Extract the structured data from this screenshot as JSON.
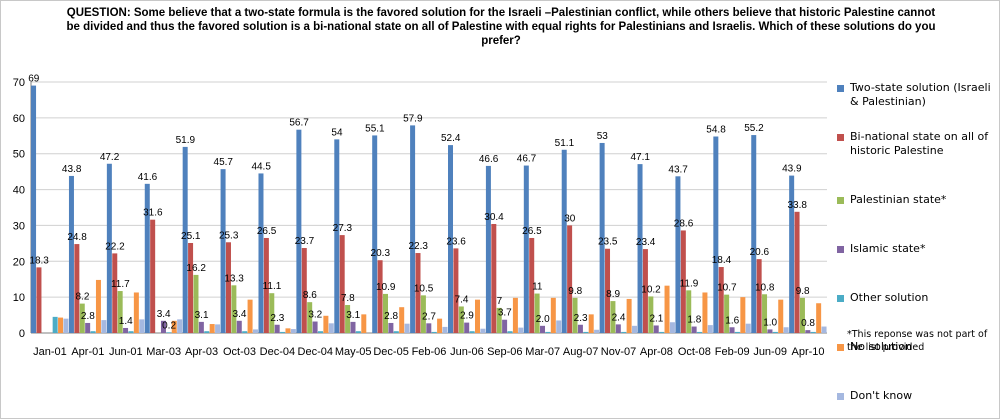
{
  "chart_data": {
    "type": "bar",
    "title": "QUESTION: Some believe that a two-state formula is the favored solution for the Israeli –Palestinian conflict, while others believe that historic Palestine cannot be divided and thus the favored solution is a bi-national state on all of Palestine with equal rights for Palestinians and Israelis. Which of these solutions do you prefer?",
    "categories": [
      "Jan-01",
      "Apr-01",
      "Jun-01",
      "Mar-03",
      "Apr-03",
      "Oct-03",
      "Dec-04",
      "Dec-04",
      "May-05",
      "Dec-05",
      "Feb-06",
      "Jun-06",
      "Sep-06",
      "Mar-07",
      "Aug-07",
      "Nov-07",
      "Apr-08",
      "Oct-08",
      "Feb-09",
      "Jun-09",
      "Apr-10"
    ],
    "ylim": [
      0,
      70
    ],
    "yticks": [
      0,
      10,
      20,
      30,
      40,
      50,
      60,
      70
    ],
    "grid": true,
    "legend_position": "right",
    "series": [
      {
        "name": "Two-state solution (Israeli & Palestinian)",
        "color": "#4f81bd",
        "values": [
          69,
          43.8,
          47.2,
          41.6,
          51.9,
          45.7,
          44.5,
          56.7,
          54,
          55.1,
          57.9,
          52.4,
          46.6,
          46.7,
          51.1,
          53,
          47.1,
          43.7,
          54.8,
          55.2,
          43.9
        ],
        "labels": [
          "69",
          "43.8",
          "47.2",
          "41.6",
          "51.9",
          "45.7",
          "44.5",
          "56.7",
          "54",
          "55.1",
          "57.9",
          "52.4",
          "46.6",
          "46.7",
          "51.1",
          "53",
          "47.1",
          "43.7",
          "54.8",
          "55.2",
          "43.9"
        ]
      },
      {
        "name": "Bi-national state on all of historic Palestine",
        "color": "#c0504d",
        "values": [
          18.3,
          24.8,
          22.2,
          31.6,
          25.1,
          25.3,
          26.5,
          23.7,
          27.3,
          20.3,
          22.3,
          23.6,
          30.4,
          26.5,
          30,
          23.5,
          23.4,
          28.6,
          18.4,
          20.6,
          33.8
        ],
        "labels": [
          "18.3",
          "24.8",
          "22.2",
          "31.6",
          "25.1",
          "25.3",
          "26.5",
          "23.7",
          "27.3",
          "20.3",
          "22.3",
          "23.6",
          "30.4",
          "26.5",
          "30",
          "23.5",
          "23.4",
          "28.6",
          "18.4",
          "20.6",
          "33.8"
        ]
      },
      {
        "name": "Palestinian state*",
        "color": "#9bbb59",
        "values": [
          null,
          8.2,
          11.7,
          null,
          16.2,
          13.3,
          11.1,
          8.6,
          7.8,
          10.9,
          10.5,
          7.4,
          7,
          11,
          9.8,
          8.9,
          10.2,
          11.9,
          10.7,
          10.8,
          9.8
        ],
        "labels": [
          "",
          "8.2",
          "11.7",
          "",
          "16.2",
          "13.3",
          "11.1",
          "8.6",
          "7.8",
          "10.9",
          "10.5",
          "7.4",
          "7",
          "11",
          "9.8",
          "8.9",
          "10.2",
          "11.9",
          "10.7",
          "10.8",
          "9.8"
        ]
      },
      {
        "name": "Islamic state*",
        "color": "#8064a2",
        "values": [
          null,
          2.8,
          1.4,
          3.4,
          3.1,
          3.4,
          2.3,
          3.2,
          3.1,
          2.8,
          2.7,
          2.9,
          3.7,
          2.0,
          2.3,
          2.4,
          2.1,
          1.8,
          1.6,
          1.0,
          0.8
        ],
        "labels": [
          "",
          "2.8",
          "1.4",
          "3.4",
          "3.1",
          "3.4",
          "2.3",
          "3.2",
          "3.1",
          "2.8",
          "2.7",
          "2.9",
          "3.7",
          "2.0",
          "2.3",
          "2.4",
          "2.1",
          "1.8",
          "1.6",
          "1.0",
          "0.8"
        ]
      },
      {
        "name": "Other solution",
        "color": "#4bacc6",
        "values": [
          4.5,
          0.5,
          0.5,
          0.2,
          0.5,
          0.5,
          0.3,
          0.5,
          0.5,
          0.5,
          0.3,
          0.5,
          0.5,
          0.3,
          0.3,
          0.3,
          0.3,
          0.3,
          0.3,
          0.3,
          0.3
        ],
        "labels": [
          "",
          "",
          "",
          "0.2",
          "",
          "",
          "",
          "",
          "",
          "",
          "",
          "",
          "",
          "",
          "",
          "",
          "",
          "",
          "",
          "",
          ""
        ]
      },
      {
        "name": "No solution",
        "color": "#f79646",
        "values": [
          4.3,
          14.8,
          11.3,
          3.4,
          2.5,
          9.3,
          1.3,
          4.8,
          5.2,
          7.2,
          4.0,
          9.3,
          9.8,
          9.8,
          5.2,
          9.5,
          13.2,
          11.3,
          10,
          9.3,
          8.3
        ],
        "labels": []
      },
      {
        "name": "Don't know",
        "color": "#a5b8e0",
        "values": [
          4.0,
          3.6,
          3.8,
          3.8,
          2.4,
          1.0,
          1.1,
          2.7,
          null,
          2.6,
          1.7,
          1.2,
          1.5,
          3.5,
          0.9,
          2.0,
          3.0,
          2.2,
          2.6,
          1.6,
          1.8
        ],
        "labels": []
      }
    ],
    "footnote": "*This reponse was not part of the list provided"
  }
}
